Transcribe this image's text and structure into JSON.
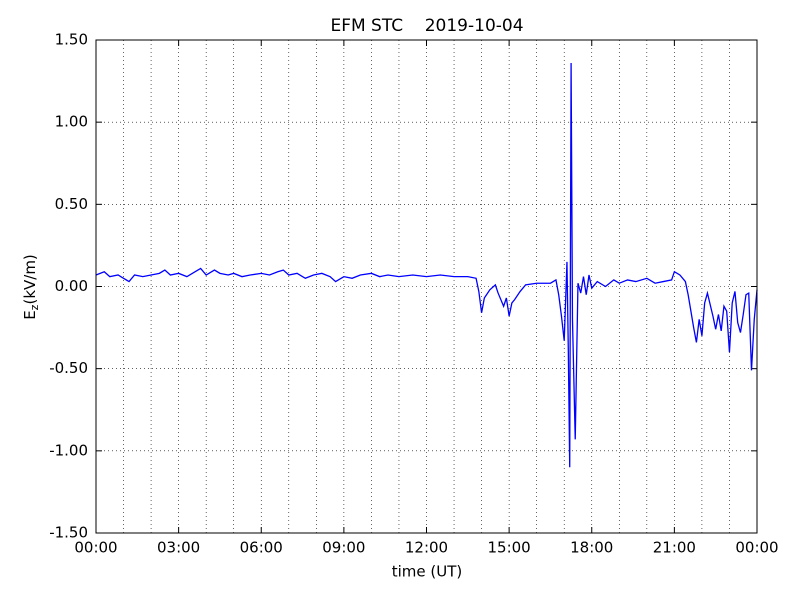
{
  "chart_data": {
    "type": "line",
    "title": "EFM STC    2019-10-04",
    "xlabel": "time (UT)",
    "ylabel": "E",
    "ylabel_sub": "z",
    "ylabel_unit": "(kV/m)",
    "xlim": [
      0,
      24
    ],
    "ylim": [
      -1.5,
      1.5
    ],
    "xticks": [
      {
        "value": 0,
        "label": "00:00"
      },
      {
        "value": 3,
        "label": "03:00"
      },
      {
        "value": 6,
        "label": "06:00"
      },
      {
        "value": 9,
        "label": "09:00"
      },
      {
        "value": 12,
        "label": "12:00"
      },
      {
        "value": 15,
        "label": "15:00"
      },
      {
        "value": 18,
        "label": "18:00"
      },
      {
        "value": 21,
        "label": "21:00"
      },
      {
        "value": 24,
        "label": "00:00"
      }
    ],
    "xminorticks": [
      1,
      2,
      4,
      5,
      7,
      8,
      10,
      11,
      13,
      14,
      16,
      17,
      19,
      20,
      22,
      23
    ],
    "yticks": [
      {
        "value": -1.5,
        "label": "-1.50"
      },
      {
        "value": -1,
        "label": "-1.00"
      },
      {
        "value": -0.5,
        "label": "-0.50"
      },
      {
        "value": 0,
        "label": "0.00"
      },
      {
        "value": 0.5,
        "label": "0.50"
      },
      {
        "value": 1,
        "label": "1.00"
      },
      {
        "value": 1.5,
        "label": "1.50"
      }
    ],
    "grid": true,
    "series": [
      {
        "color": "#0000ff",
        "x": [
          0,
          0.3,
          0.5,
          0.8,
          1.0,
          1.2,
          1.4,
          1.7,
          2.0,
          2.3,
          2.5,
          2.7,
          3.0,
          3.3,
          3.6,
          3.8,
          4.0,
          4.3,
          4.5,
          4.8,
          5.0,
          5.3,
          5.6,
          6.0,
          6.3,
          6.6,
          6.8,
          7.0,
          7.3,
          7.6,
          7.9,
          8.2,
          8.5,
          8.7,
          9.0,
          9.3,
          9.6,
          10.0,
          10.3,
          10.6,
          11.0,
          11.5,
          12.0,
          12.5,
          13.0,
          13.5,
          13.8,
          13.9,
          14.0,
          14.1,
          14.3,
          14.5,
          14.6,
          14.8,
          14.9,
          15.0,
          15.1,
          15.2,
          15.4,
          15.6,
          16.0,
          16.5,
          16.7,
          16.8,
          16.9,
          17.0,
          17.1,
          17.15,
          17.2,
          17.25,
          17.3,
          17.4,
          17.5,
          17.6,
          17.7,
          17.8,
          17.9,
          18.0,
          18.2,
          18.5,
          18.8,
          19.0,
          19.3,
          19.6,
          20.0,
          20.3,
          20.6,
          20.9,
          21.0,
          21.2,
          21.4,
          21.5,
          21.6,
          21.7,
          21.8,
          21.9,
          22.0,
          22.1,
          22.2,
          22.4,
          22.5,
          22.6,
          22.7,
          22.8,
          22.9,
          23.0,
          23.1,
          23.2,
          23.3,
          23.4,
          23.5,
          23.6,
          23.7,
          23.8,
          23.9,
          24.0
        ],
        "values": [
          0.07,
          0.09,
          0.06,
          0.07,
          0.05,
          0.03,
          0.07,
          0.06,
          0.07,
          0.08,
          0.1,
          0.07,
          0.08,
          0.06,
          0.09,
          0.11,
          0.07,
          0.1,
          0.08,
          0.07,
          0.08,
          0.06,
          0.07,
          0.08,
          0.07,
          0.09,
          0.1,
          0.07,
          0.08,
          0.05,
          0.07,
          0.08,
          0.06,
          0.03,
          0.06,
          0.05,
          0.07,
          0.08,
          0.06,
          0.07,
          0.06,
          0.07,
          0.06,
          0.07,
          0.06,
          0.06,
          0.05,
          -0.03,
          -0.16,
          -0.07,
          -0.02,
          0.01,
          -0.04,
          -0.12,
          -0.07,
          -0.18,
          -0.1,
          -0.08,
          -0.03,
          0.01,
          0.02,
          0.02,
          0.04,
          -0.05,
          -0.18,
          -0.33,
          0.15,
          -0.4,
          -1.1,
          1.36,
          -0.2,
          -0.93,
          0.02,
          -0.04,
          0.06,
          -0.05,
          0.07,
          -0.01,
          0.03,
          0.0,
          0.04,
          0.02,
          0.04,
          0.03,
          0.05,
          0.02,
          0.03,
          0.04,
          0.09,
          0.07,
          0.03,
          -0.05,
          -0.15,
          -0.25,
          -0.34,
          -0.2,
          -0.3,
          -0.1,
          -0.04,
          -0.18,
          -0.26,
          -0.17,
          -0.27,
          -0.12,
          -0.15,
          -0.4,
          -0.1,
          -0.03,
          -0.22,
          -0.28,
          -0.17,
          -0.05,
          -0.04,
          -0.51,
          -0.2,
          -0.02
        ]
      }
    ]
  }
}
